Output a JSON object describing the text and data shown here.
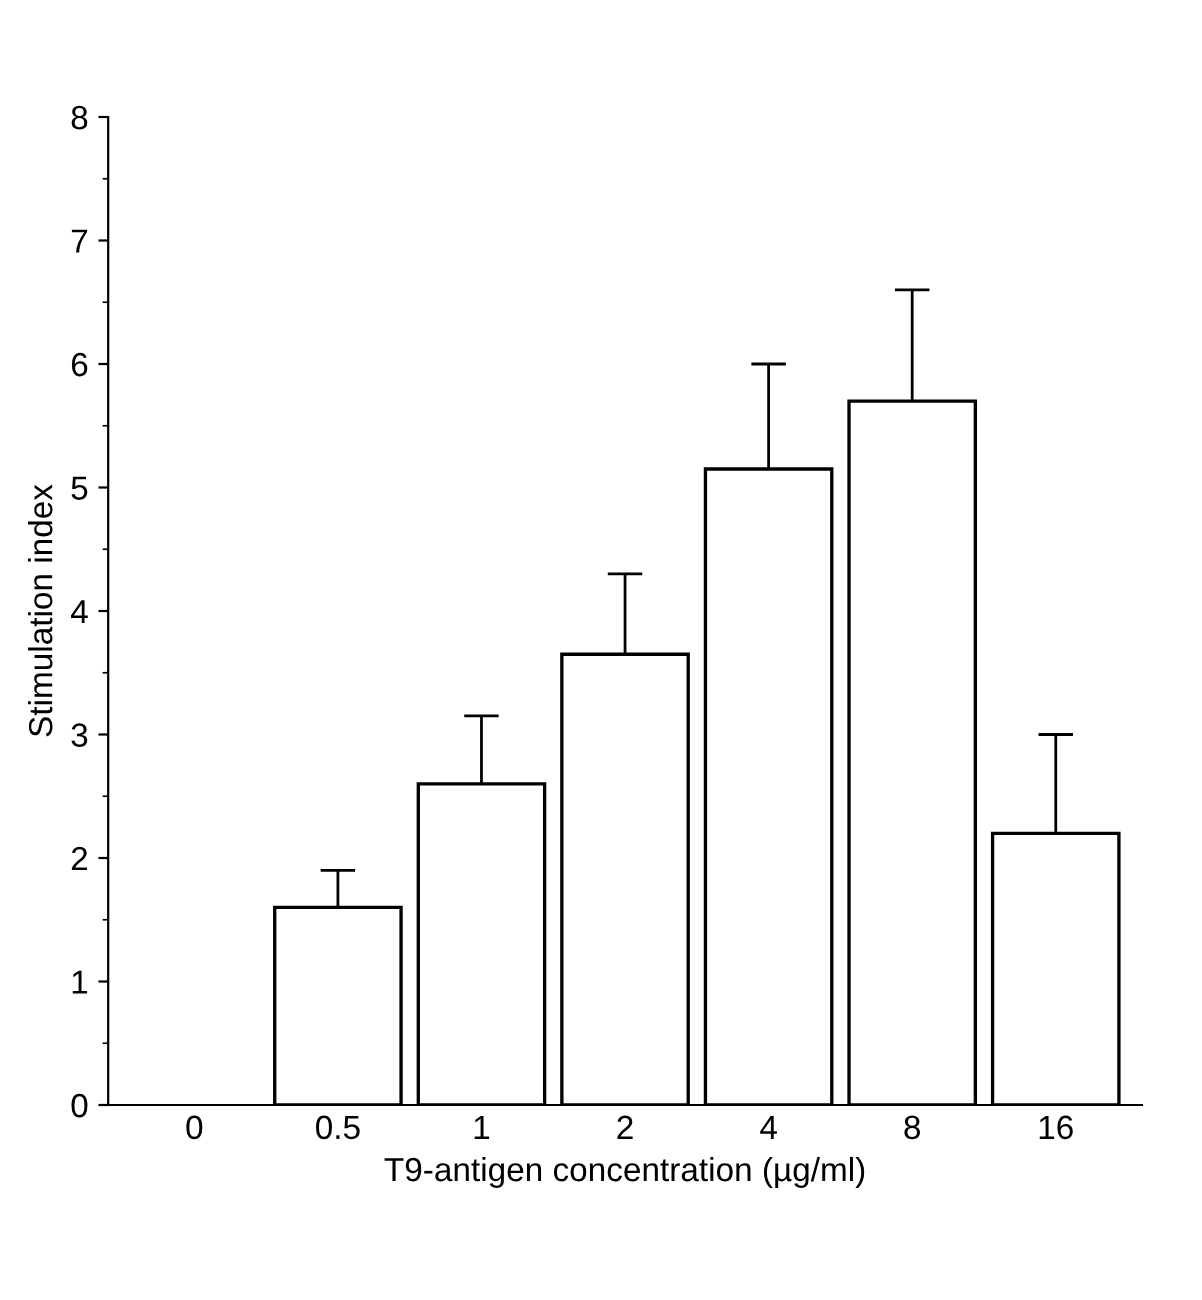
{
  "chart_data": {
    "type": "bar",
    "xlabel": "T9-antigen concentration (µg/ml)",
    "ylabel": "Stimulation index",
    "categories": [
      "0",
      "0.5",
      "1",
      "2",
      "4",
      "8",
      "16"
    ],
    "values": [
      null,
      1.6,
      2.6,
      3.65,
      5.15,
      5.7,
      2.2
    ],
    "errors": [
      null,
      [
        1.6,
        1.9
      ],
      [
        2.6,
        3.15
      ],
      [
        3.65,
        4.3
      ],
      [
        5.15,
        6.0
      ],
      [
        5.7,
        6.6
      ],
      [
        2.2,
        3.0
      ]
    ],
    "color": "#ffffff",
    "ylim": [
      0,
      8
    ],
    "yticks": [
      0,
      1,
      2,
      3,
      4,
      5,
      6,
      7,
      8
    ],
    "grid": false
  }
}
